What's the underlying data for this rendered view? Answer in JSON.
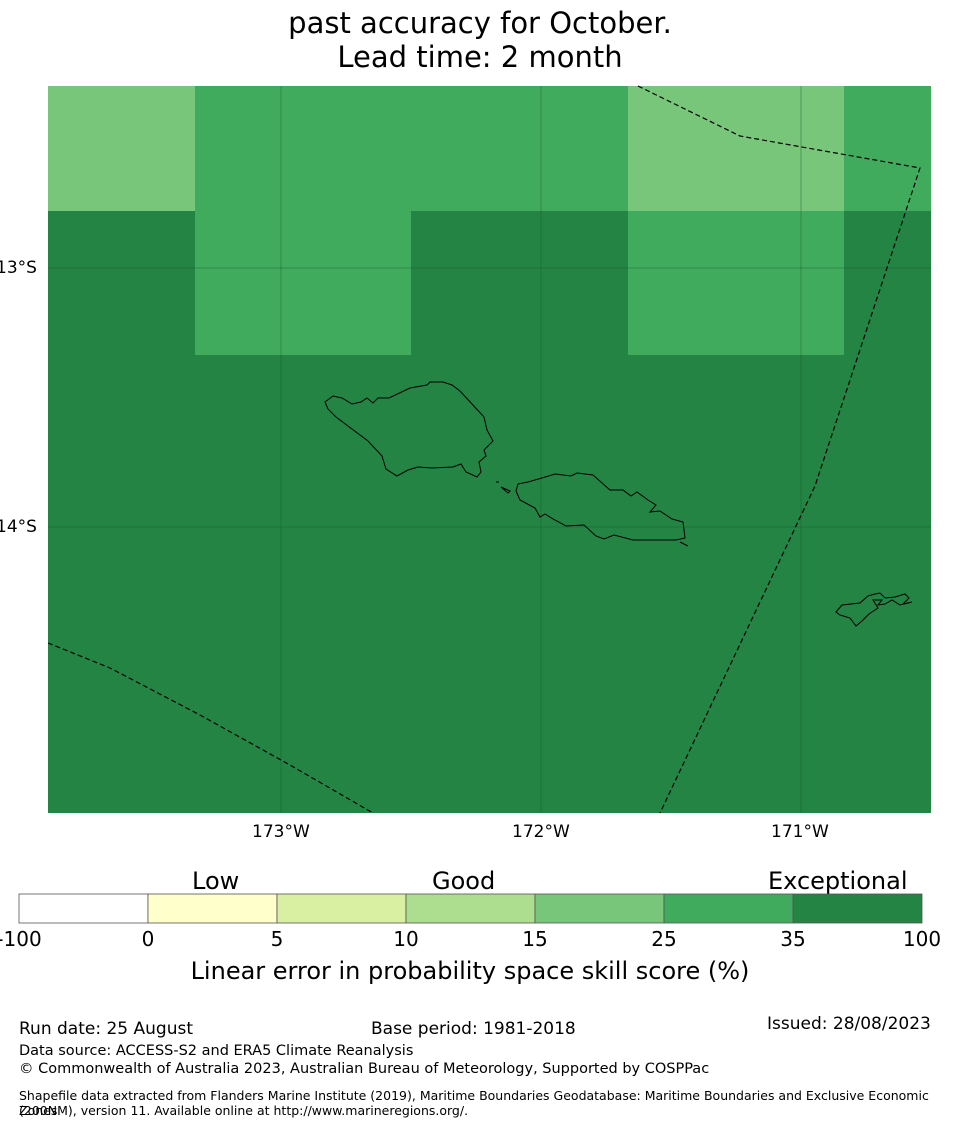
{
  "title": {
    "line1": "past accuracy for October.",
    "line2": "Lead time: 2 month"
  },
  "map": {
    "lat_labels": [
      "13°S",
      "14°S"
    ],
    "lon_labels": [
      "173°W",
      "172°W",
      "171°W"
    ],
    "cells": [
      [
        "light-green",
        "medium-green",
        "medium-green",
        "medium-green",
        "light-green",
        "medium-green"
      ],
      [
        "dark-green",
        "medium-green",
        "dark-green",
        "dark-green",
        "medium-green",
        "dark-green"
      ],
      [
        "dark-green",
        "dark-green",
        "dark-green",
        "dark-green",
        "dark-green",
        "dark-green"
      ]
    ],
    "colors": {
      "light-green": "#78c679",
      "medium-green": "#41ab5d",
      "dark-green": "#238443"
    }
  },
  "colorbar": {
    "category_labels": [
      "Low",
      "Good",
      "Exceptional"
    ],
    "ticks": [
      "-100",
      "0",
      "5",
      "10",
      "15",
      "25",
      "35",
      "100"
    ],
    "colors": [
      "#ffffff",
      "#ffffcc",
      "#d9f0a3",
      "#addd8e",
      "#78c679",
      "#41ab5d",
      "#238443"
    ],
    "label": "Linear error in probability space skill score (%)"
  },
  "footer": {
    "run_date": "Run date: 25 August",
    "base_period": "Base period: 1981-2018",
    "issued": "Issued: 28/08/2023",
    "data_source": "Data source: ACCESS-S2 and ERA5 Climate Reanalysis",
    "copyright": "© Commonwealth of Australia 2023, Australian Bureau of Meteorology, Supported by COSPPac",
    "shapefile_line1": "Shapefile data extracted from Flanders Marine Institute (2019), Maritime Boundaries Geodatabase: Maritime Boundaries and Exclusive Economic Zones",
    "shapefile_line2": "(200NM), version 11. Available online at http://www.marineregions.org/."
  }
}
